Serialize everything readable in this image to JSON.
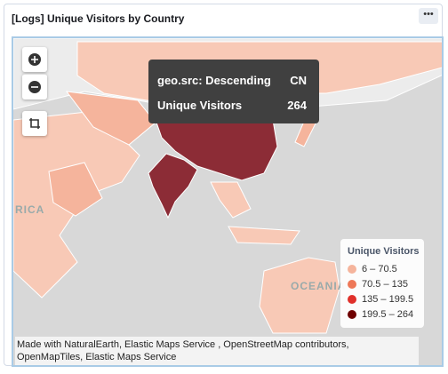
{
  "panel_title": "[Logs] Unique Visitors by Country",
  "tooltip": {
    "rows": [
      [
        "geo.src: Descending",
        "CN"
      ],
      [
        "Unique Visitors",
        "264"
      ]
    ]
  },
  "legend": {
    "title": "Unique Visitors",
    "items": [
      {
        "label": "6 – 70.5",
        "color": "#f5b49c"
      },
      {
        "label": "70.5 – 135",
        "color": "#ee7858"
      },
      {
        "label": "135 – 199.5",
        "color": "#e0302a"
      },
      {
        "label": "199.5 – 264",
        "color": "#6e0000"
      }
    ]
  },
  "map_labels": [
    "RICA",
    "OCEANIA"
  ],
  "attribution": "Made with NaturalEarth, Elastic Maps Service , OpenStreetMap contributors, OpenMapTiles, Elastic Maps Service"
}
